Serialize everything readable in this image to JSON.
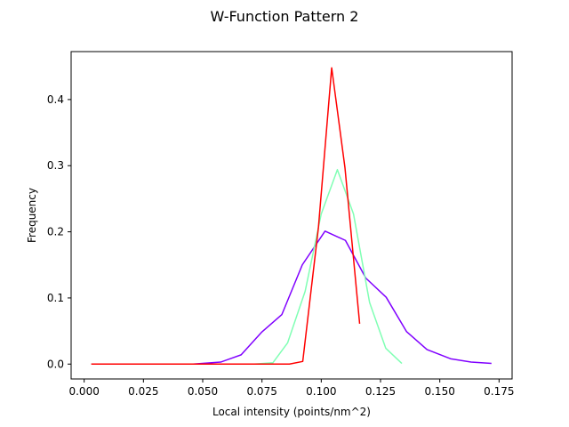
{
  "chart_data": {
    "type": "line",
    "title": "W-Function Pattern 2",
    "xlabel": "Local intensity (points/nm^2)",
    "ylabel": "Frequency",
    "xlim": [
      -0.0055,
      0.1805
    ],
    "ylim": [
      -0.0225,
      0.4725
    ],
    "xticks": [
      0.0,
      0.025,
      0.05,
      0.075,
      0.1,
      0.125,
      0.15,
      0.175
    ],
    "xtick_labels": [
      "0.000",
      "0.025",
      "0.050",
      "0.075",
      "0.100",
      "0.125",
      "0.150",
      "0.175"
    ],
    "yticks": [
      0.0,
      0.1,
      0.2,
      0.3,
      0.4
    ],
    "ytick_labels": [
      "0.0",
      "0.1",
      "0.2",
      "0.3",
      "0.4"
    ],
    "grid": false,
    "legend": "none",
    "series": [
      {
        "color": "#8000ff",
        "x": [
          0.003,
          0.0116,
          0.0202,
          0.0288,
          0.0374,
          0.046,
          0.0576,
          0.0662,
          0.0748,
          0.0834,
          0.092,
          0.1016,
          0.1102,
          0.1188,
          0.1274,
          0.136,
          0.1446,
          0.1546,
          0.1632,
          0.1718
        ],
        "y": [
          0.0,
          0.0,
          0.0,
          0.0,
          0.0,
          0.0,
          0.003,
          0.014,
          0.048,
          0.075,
          0.15,
          0.201,
          0.187,
          0.13,
          0.101,
          0.049,
          0.022,
          0.008,
          0.003,
          0.001
        ]
      },
      {
        "color": "#80ffb4",
        "x": [
          0.003,
          0.0116,
          0.0202,
          0.0288,
          0.0374,
          0.046,
          0.0546,
          0.0632,
          0.0718,
          0.0796,
          0.0858,
          0.0932,
          0.1,
          0.1068,
          0.1136,
          0.1204,
          0.1272,
          0.134
        ],
        "y": [
          0.0,
          0.0,
          0.0,
          0.0,
          0.0,
          0.0,
          0.0,
          0.0,
          0.0,
          0.002,
          0.032,
          0.11,
          0.227,
          0.294,
          0.227,
          0.093,
          0.024,
          0.001
        ]
      },
      {
        "color": "#ff0000",
        "x": [
          0.003,
          0.0116,
          0.0202,
          0.0288,
          0.0374,
          0.046,
          0.0546,
          0.0632,
          0.0718,
          0.0804,
          0.0866,
          0.0922,
          0.0988,
          0.1044,
          0.11,
          0.1162
        ],
        "y": [
          0.0,
          0.0,
          0.0,
          0.0,
          0.0,
          0.0,
          0.0,
          0.0,
          0.0,
          0.0,
          0.0,
          0.004,
          0.206,
          0.448,
          0.297,
          0.061
        ]
      }
    ]
  }
}
